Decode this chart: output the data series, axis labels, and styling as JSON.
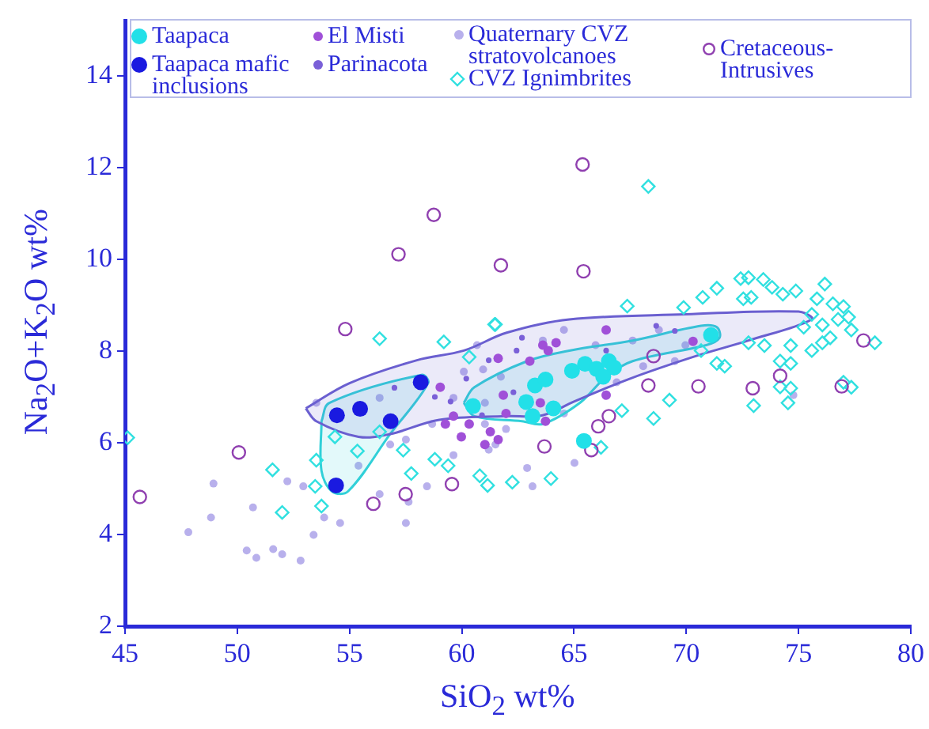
{
  "chart_data": {
    "type": "scatter",
    "xlabel": "SiO$_{2}$ wt%",
    "ylabel": "Na$_{2}$O+K$_{2}$O wt%",
    "xlim": [
      45,
      80
    ],
    "ylim": [
      2,
      15.2
    ],
    "xticks": [
      45,
      50,
      55,
      60,
      65,
      70,
      75,
      80
    ],
    "yticks": [
      2,
      4,
      6,
      8,
      10,
      12,
      14
    ],
    "grid": false,
    "legend": "top",
    "series": [
      {
        "name": "Quaternary CVZ stratovolcanoes",
        "color": "#b8b0ec",
        "marker": "circle",
        "x": [
          47.82,
          48.83,
          48.94,
          50.42,
          50.85,
          51.6,
          52.0,
          52.82,
          50.7,
          53.4,
          52.23,
          52.94,
          54.58,
          53.87,
          57.51,
          57.63,
          56.34,
          58.45,
          55.4,
          56.81,
          58.68,
          59.63,
          60.09,
          59.63,
          61.03,
          61.5,
          56.34,
          53.52,
          57.51,
          60.68,
          60.95,
          64.55,
          63.61,
          65.96,
          67.61,
          68.78,
          69.96,
          61.2,
          62.91,
          63.15,
          65.02,
          61.97,
          64.55,
          66.9,
          68.08,
          69.49,
          61.74,
          61.03,
          74.77
        ],
        "values": [
          4.05,
          4.37,
          5.11,
          3.65,
          3.49,
          3.68,
          3.57,
          3.43,
          4.59,
          3.99,
          5.16,
          5.05,
          4.25,
          4.37,
          4.25,
          4.71,
          4.88,
          5.05,
          5.5,
          5.96,
          6.41,
          5.73,
          7.55,
          6.98,
          6.41,
          5.96,
          6.98,
          6.87,
          6.07,
          8.13,
          7.6,
          8.46,
          8.23,
          8.13,
          8.23,
          8.46,
          8.13,
          5.85,
          5.45,
          5.05,
          5.56,
          6.3,
          6.64,
          7.32,
          7.67,
          7.78,
          7.44,
          6.87,
          7.04
        ]
      },
      {
        "color": "#6a5fd0",
        "type": "area",
        "x": [
          53.05,
          55.0,
          58.0,
          60.09,
          62.0,
          64.79,
          69.96,
          75.0,
          75.59,
          72.77,
          70.42,
          67.5,
          65.0,
          63.6,
          61.97,
          59.0,
          56.81,
          55.4,
          53.52,
          53.05
        ],
        "values": [
          6.75,
          7.3,
          7.8,
          8.01,
          8.4,
          8.69,
          8.8,
          8.86,
          8.69,
          8.23,
          7.89,
          7.4,
          6.9,
          6.6,
          6.58,
          6.5,
          6.19,
          6.13,
          6.47,
          6.75
        ]
      },
      {
        "color": "#30d0d8",
        "type": "area",
        "x": [
          53.75,
          54.1,
          58.2,
          58.5,
          56.81,
          54.93,
          54.22,
          53.75,
          53.75
        ],
        "values": [
          6.47,
          6.87,
          7.48,
          7.3,
          6.19,
          4.94,
          4.94,
          5.39,
          6.47
        ]
      },
      {
        "color": "#30d0d8",
        "type": "area",
        "x": [
          60.09,
          60.56,
          62.91,
          64.79,
          67.61,
          70.66,
          71.36,
          71.48,
          70.89,
          67.61,
          66.43,
          65.26,
          63.61,
          62.68,
          60.56,
          60.09
        ],
        "values": [
          6.87,
          7.21,
          7.78,
          8.01,
          8.23,
          8.55,
          8.52,
          8.29,
          8.13,
          7.78,
          7.44,
          6.87,
          6.41,
          6.47,
          6.58,
          6.87
        ]
      },
      {
        "name": "CVZ Ignimbrites",
        "color": "#30e0e0",
        "marker": "diamond",
        "x": [
          68.31,
          61.5,
          67.37,
          69.88,
          70.73,
          71.36,
          72.42,
          72.77,
          73.43,
          73.82,
          72.54,
          72.89,
          74.3,
          74.88,
          76.17,
          75.82,
          76.53,
          77.0,
          77.23,
          76.76,
          76.06,
          75.59,
          75.23,
          76.41,
          77.35,
          78.4,
          76.06,
          75.59,
          74.65,
          73.48,
          72.77,
          70.66,
          71.36,
          71.71,
          74.18,
          74.65,
          74.18,
          74.65,
          74.53,
          73.0,
          77.0,
          77.35,
          69.25,
          68.54,
          67.13,
          66.2,
          63.97,
          62.25,
          60.8,
          56.34,
          59.2,
          61.46,
          60.33,
          45.12,
          51.57,
          52.0,
          53.47,
          53.75,
          54.35,
          55.35,
          56.34,
          57.39,
          57.75,
          58.8,
          59.39,
          61.15,
          53.52
        ],
        "values": [
          11.59,
          8.58,
          8.98,
          8.95,
          9.17,
          9.37,
          9.58,
          9.6,
          9.56,
          9.39,
          9.14,
          9.17,
          9.24,
          9.31,
          9.46,
          9.14,
          9.03,
          8.97,
          8.74,
          8.69,
          8.57,
          8.8,
          8.52,
          8.29,
          8.46,
          8.18,
          8.18,
          8.01,
          8.12,
          8.12,
          8.18,
          8.01,
          7.73,
          7.67,
          7.78,
          7.73,
          7.22,
          7.19,
          6.87,
          6.81,
          7.32,
          7.21,
          6.93,
          6.53,
          6.7,
          5.9,
          5.22,
          5.14,
          5.28,
          8.27,
          8.2,
          8.58,
          7.87,
          6.11,
          5.41,
          4.48,
          5.05,
          4.62,
          6.13,
          5.82,
          6.24,
          5.84,
          5.33,
          5.64,
          5.5,
          5.07,
          5.62
        ]
      },
      {
        "name": "Cretaceous-Intrusives",
        "color": "#9040b0",
        "marker": "circle",
        "x": [
          58.75,
          57.18,
          61.74,
          54.81,
          50.07,
          45.66,
          56.06,
          59.56,
          57.5,
          65.38,
          65.42,
          68.31,
          70.54,
          72.96,
          77.89,
          76.92,
          63.68,
          65.77,
          66.08,
          66.55,
          68.54,
          74.18
        ],
        "values": [
          10.97,
          10.11,
          9.87,
          8.48,
          5.79,
          4.82,
          4.67,
          5.1,
          4.88,
          12.07,
          9.74,
          7.25,
          7.23,
          7.19,
          8.23,
          7.23,
          5.92,
          5.84,
          6.36,
          6.58,
          7.89,
          7.46
        ]
      },
      {
        "name": "Parinacota",
        "color": "#7a60d8",
        "marker": "circle",
        "x": [
          68.66,
          69.49,
          62.44,
          62.68,
          66.43,
          62.3,
          61.2,
          60.2,
          58.8,
          57.0,
          59.5,
          60.9
        ],
        "values": [
          8.55,
          8.44,
          8.01,
          8.29,
          8.01,
          7.1,
          7.8,
          7.4,
          7.0,
          7.2,
          6.9,
          6.6
        ]
      },
      {
        "name": "El Misti",
        "color": "#a050d8",
        "marker": "circle",
        "x": [
          59.04,
          59.63,
          59.98,
          59.27,
          60.33,
          61.03,
          61.85,
          61.62,
          63.03,
          63.61,
          64.2,
          66.43,
          70.3,
          61.97,
          61.27,
          61.62,
          63.5,
          63.73,
          66.43,
          63.85
        ],
        "values": [
          7.21,
          6.58,
          6.13,
          6.41,
          6.41,
          5.96,
          7.04,
          7.84,
          7.78,
          8.13,
          8.18,
          8.46,
          8.21,
          6.64,
          6.24,
          6.07,
          6.87,
          6.47,
          7.04,
          8.01
        ]
      },
      {
        "name": "Taapaca mafic inclusions",
        "color": "#1a1ae0",
        "marker": "circle",
        "x": [
          54.44,
          55.47,
          56.83,
          58.17,
          54.4
        ],
        "values": [
          6.6,
          6.74,
          6.47,
          7.32,
          5.07
        ]
      },
      {
        "name": "Taapaca",
        "color": "#22e0e8",
        "marker": "circle",
        "x": [
          71.1,
          64.91,
          65.49,
          66.0,
          66.55,
          66.78,
          66.3,
          63.26,
          63.73,
          62.87,
          64.08,
          63.15,
          65.44,
          60.5
        ],
        "values": [
          8.35,
          7.57,
          7.72,
          7.61,
          7.78,
          7.64,
          7.44,
          7.25,
          7.38,
          6.89,
          6.75,
          6.58,
          6.04,
          6.8
        ]
      }
    ]
  }
}
